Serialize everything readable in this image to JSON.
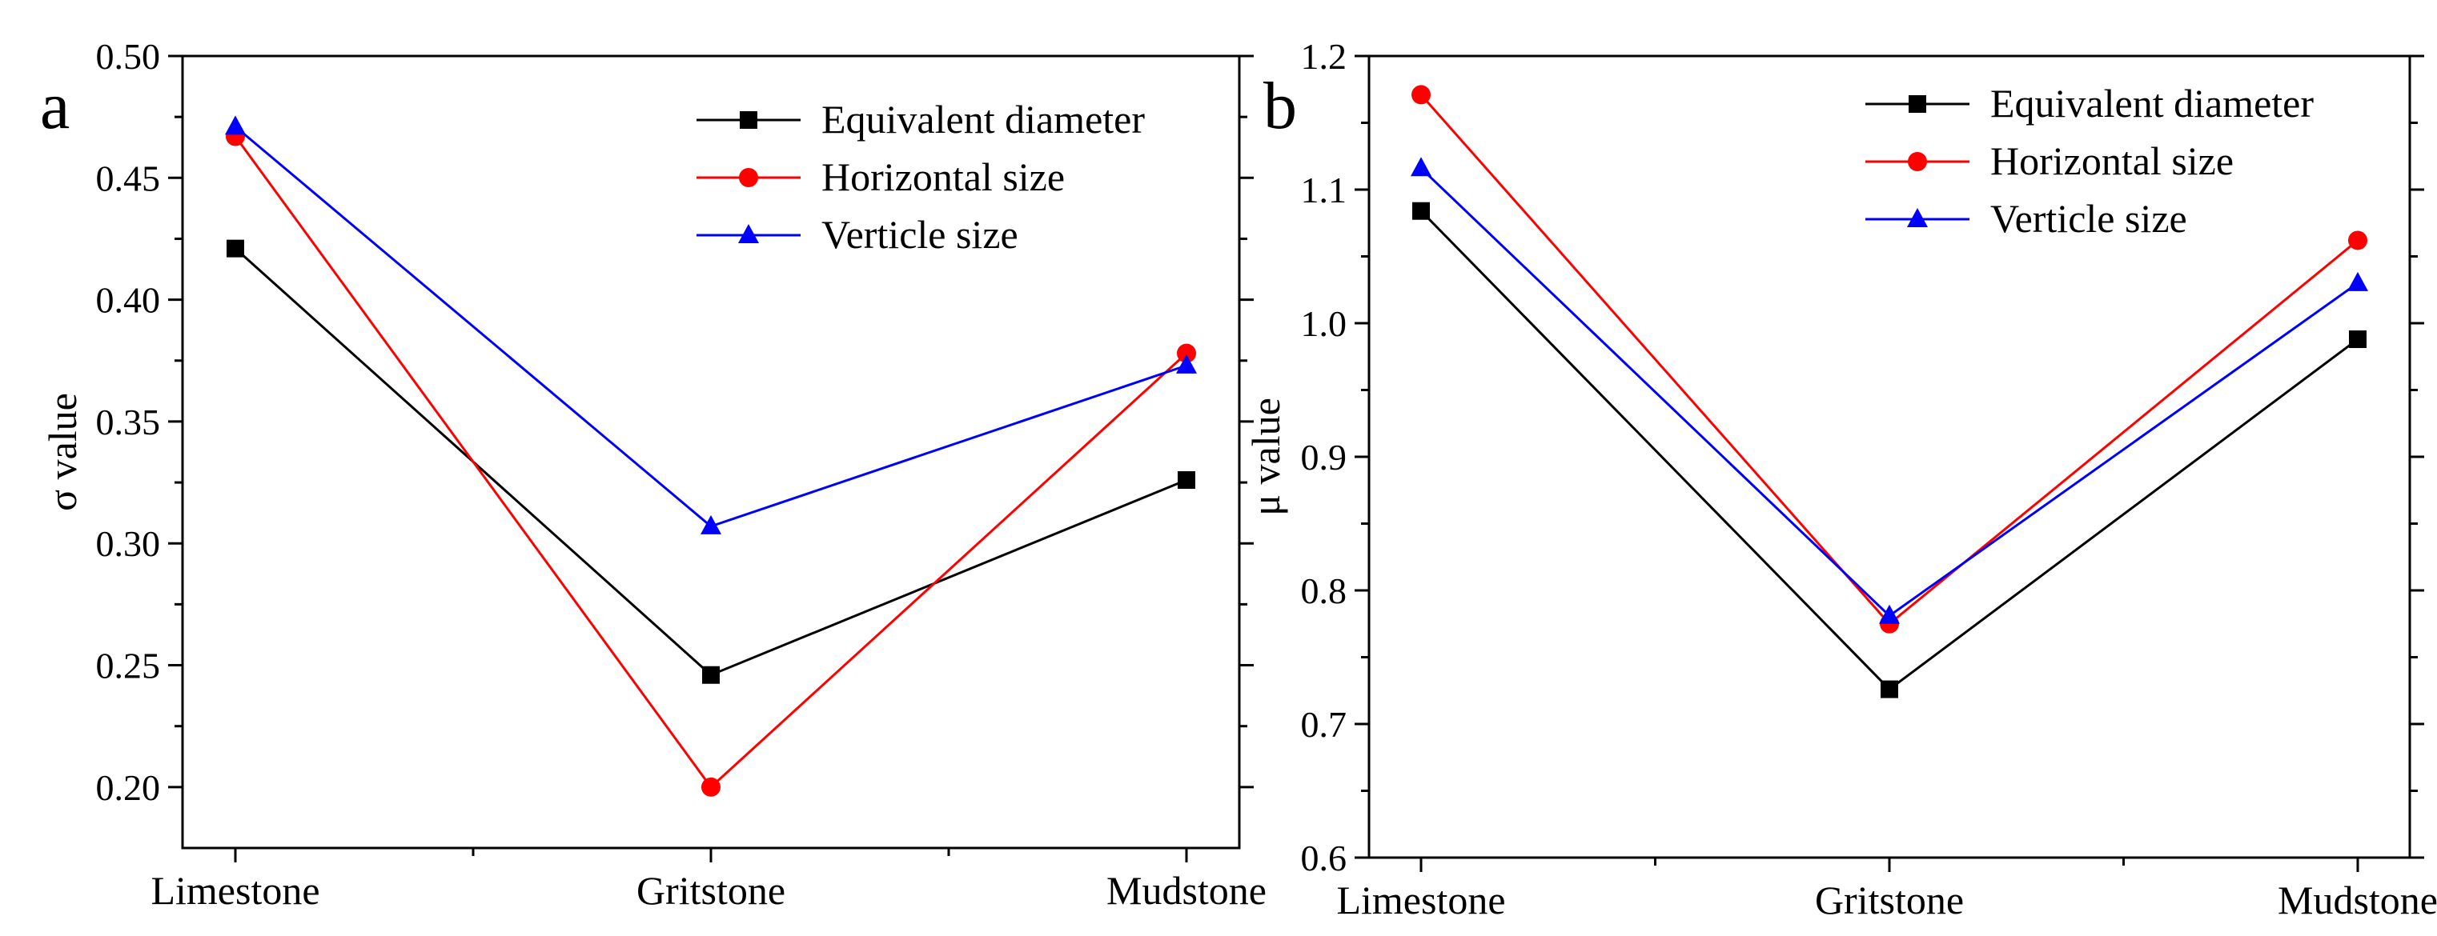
{
  "chart_data": [
    {
      "type": "line",
      "panel_label": "a",
      "title": "",
      "xlabel": "",
      "ylabel": "σ value",
      "categories": [
        "Limestone",
        "Gritstone",
        "Mudstone"
      ],
      "ylim": [
        0.175,
        0.5
      ],
      "yticks": [
        "0.20",
        "0.25",
        "0.30",
        "0.35",
        "0.40",
        "0.45",
        "0.50"
      ],
      "ytick_values": [
        0.2,
        0.25,
        0.3,
        0.35,
        0.4,
        0.45,
        0.5
      ],
      "legend_position": "top-right",
      "series": [
        {
          "name": "Equivalent diameter",
          "color": "#000000",
          "marker": "square",
          "values": [
            0.421,
            0.246,
            0.326
          ]
        },
        {
          "name": "Horizontal size",
          "color": "#ff0000",
          "marker": "circle",
          "values": [
            0.467,
            0.2,
            0.378
          ]
        },
        {
          "name": "Verticle size",
          "color": "#0000ff",
          "marker": "triangle",
          "values": [
            0.471,
            0.307,
            0.373
          ]
        }
      ]
    },
    {
      "type": "line",
      "panel_label": "b",
      "title": "",
      "xlabel": "",
      "ylabel": "μ value",
      "categories": [
        "Limestone",
        "Gritstone",
        "Mudstone"
      ],
      "ylim": [
        0.6,
        1.2
      ],
      "yticks": [
        "0.6",
        "0.7",
        "0.8",
        "0.9",
        "1.0",
        "1.1",
        "1.2"
      ],
      "ytick_values": [
        0.6,
        0.7,
        0.8,
        0.9,
        1.0,
        1.1,
        1.2
      ],
      "legend_position": "top-right",
      "series": [
        {
          "name": "Equivalent diameter",
          "color": "#000000",
          "marker": "square",
          "values": [
            1.084,
            0.726,
            0.988
          ]
        },
        {
          "name": "Horizontal size",
          "color": "#ff0000",
          "marker": "circle",
          "values": [
            1.171,
            0.775,
            1.062
          ]
        },
        {
          "name": "Verticle size",
          "color": "#0000ff",
          "marker": "triangle",
          "values": [
            1.116,
            0.781,
            1.03
          ]
        }
      ]
    }
  ]
}
